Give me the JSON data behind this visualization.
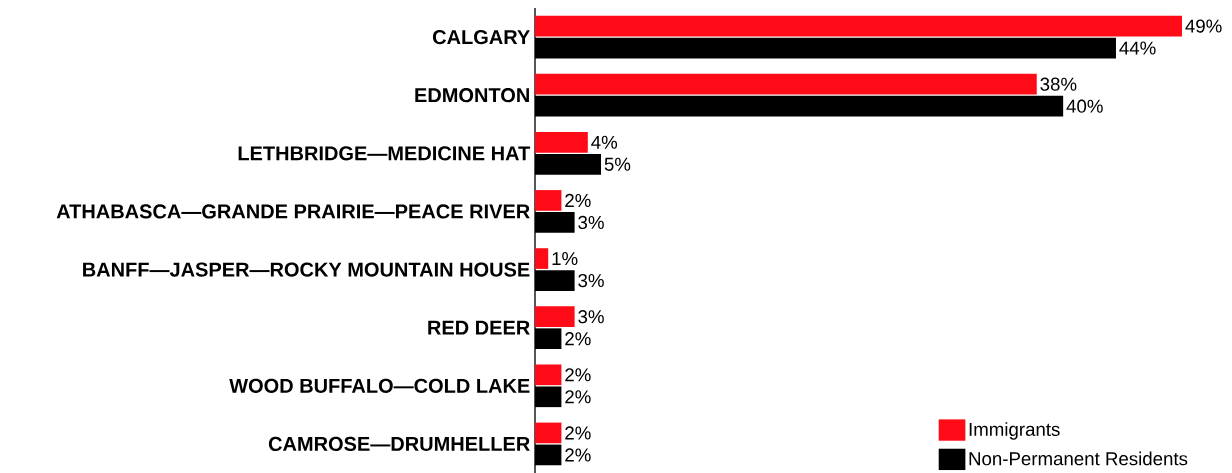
{
  "chart_data": {
    "type": "bar",
    "orientation": "horizontal",
    "categories": [
      "CALGARY",
      "EDMONTON",
      "LETHBRIDGE—MEDICINE HAT",
      "ATHABASCA—GRANDE PRAIRIE—PEACE RIVER",
      "BANFF—JASPER—ROCKY MOUNTAIN HOUSE",
      "RED DEER",
      "WOOD BUFFALO—COLD LAKE",
      "CAMROSE—DRUMHELLER"
    ],
    "series": [
      {
        "name": "Immigrants",
        "color": "#ff0a17",
        "values": [
          49,
          38,
          4,
          2,
          1,
          3,
          2,
          2
        ],
        "value_labels": [
          "49%",
          "38%",
          "4%",
          "2%",
          "1%",
          "3%",
          "2%",
          "2%"
        ]
      },
      {
        "name": "Non-Permanent Residents",
        "color": "#000000",
        "values": [
          44,
          40,
          5,
          3,
          3,
          2,
          2,
          2
        ],
        "value_labels": [
          "44%",
          "40%",
          "5%",
          "3%",
          "3%",
          "2%",
          "2%",
          "2%"
        ]
      }
    ],
    "legend": "bottom right"
  }
}
